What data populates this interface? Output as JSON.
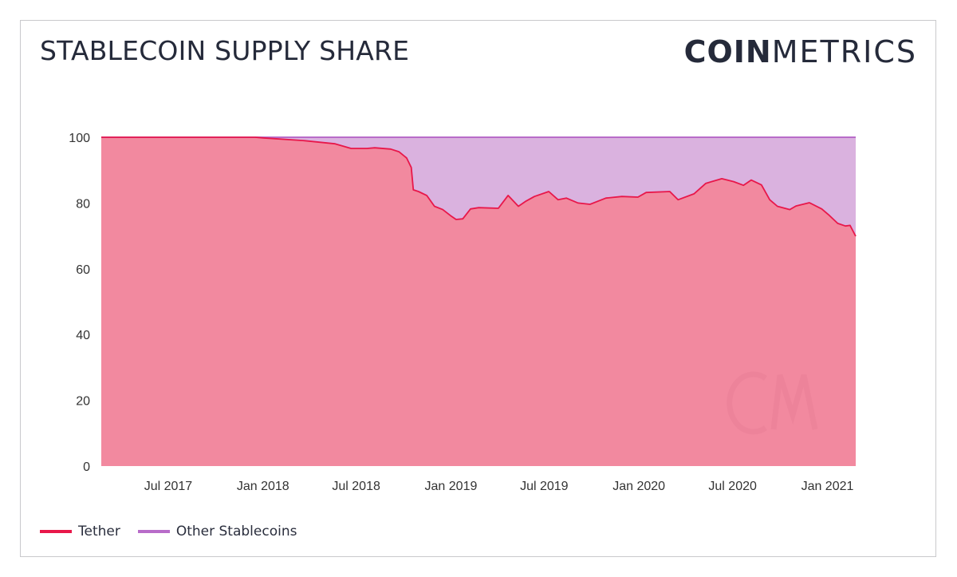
{
  "header": {
    "title": "STABLECOIN SUPPLY SHARE",
    "logo_bold": "COIN",
    "logo_light": "METRICS",
    "watermark": "CM"
  },
  "colors": {
    "tether": "#e8174a",
    "tether_fill": "#f2899f",
    "other": "#b86cc9",
    "other_fill": "#dab2df",
    "text": "#252a3a"
  },
  "chart_data": {
    "type": "area",
    "stacked": true,
    "title": "STABLECOIN SUPPLY SHARE",
    "xlabel": "",
    "ylabel": "",
    "ylim": [
      0,
      100
    ],
    "xlim": [
      "2017-02-21",
      "2021-02-25"
    ],
    "grid": false,
    "legend_placement": "bottom-left",
    "y_ticks": [
      "0",
      "20",
      "40",
      "60",
      "80",
      "100"
    ],
    "x_ticks": [
      {
        "label": "Jul 2017",
        "date": "2017-07-01"
      },
      {
        "label": "Jan 2018",
        "date": "2018-01-01"
      },
      {
        "label": "Jul 2018",
        "date": "2018-07-01"
      },
      {
        "label": "Jan 2019",
        "date": "2019-01-01"
      },
      {
        "label": "Jul 2019",
        "date": "2019-07-01"
      },
      {
        "label": "Jan 2020",
        "date": "2020-01-01"
      },
      {
        "label": "Jul 2020",
        "date": "2020-07-01"
      },
      {
        "label": "Jan 2021",
        "date": "2021-01-01"
      }
    ],
    "x": [
      "2017-02-21",
      "2017-12-17",
      "2018-01-01",
      "2018-03-20",
      "2018-05-21",
      "2018-06-21",
      "2018-07-22",
      "2018-08-06",
      "2018-09-06",
      "2018-09-22",
      "2018-10-07",
      "2018-10-16",
      "2018-10-20",
      "2018-10-30",
      "2018-11-15",
      "2018-11-30",
      "2018-12-16",
      "2018-12-31",
      "2019-01-11",
      "2019-01-24",
      "2019-02-08",
      "2019-02-24",
      "2019-04-03",
      "2019-04-22",
      "2019-05-12",
      "2019-05-27",
      "2019-06-12",
      "2019-07-10",
      "2019-07-28",
      "2019-08-13",
      "2019-09-05",
      "2019-09-28",
      "2019-10-29",
      "2019-11-29",
      "2019-12-30",
      "2020-01-15",
      "2020-03-01",
      "2020-03-17",
      "2020-04-17",
      "2020-05-10",
      "2020-06-10",
      "2020-07-03",
      "2020-07-22",
      "2020-08-06",
      "2020-08-26",
      "2020-09-11",
      "2020-09-26",
      "2020-10-20",
      "2020-11-01",
      "2020-11-27",
      "2020-12-21",
      "2021-01-05",
      "2021-01-21",
      "2021-02-05",
      "2021-02-14",
      "2021-02-25"
    ],
    "series": [
      {
        "name": "Tether",
        "values": [
          100,
          100,
          99.8,
          99,
          98,
          96.6,
          96.6,
          96.8,
          96.4,
          95.6,
          93.7,
          90.8,
          84,
          83.5,
          82.3,
          79,
          78,
          76.2,
          75,
          75.2,
          78.2,
          78.6,
          78.4,
          82.3,
          79,
          80.6,
          82,
          83.5,
          81,
          81.5,
          80,
          79.6,
          81.5,
          82,
          81.8,
          83.2,
          83.5,
          81,
          82.8,
          86,
          87.4,
          86.5,
          85.4,
          87,
          85.5,
          81,
          79,
          78,
          79.1,
          80.1,
          78.2,
          76.2,
          73.8,
          73,
          73.2,
          69.9
        ]
      },
      {
        "name": "Other Stablecoins",
        "stack_top": 100
      }
    ]
  }
}
